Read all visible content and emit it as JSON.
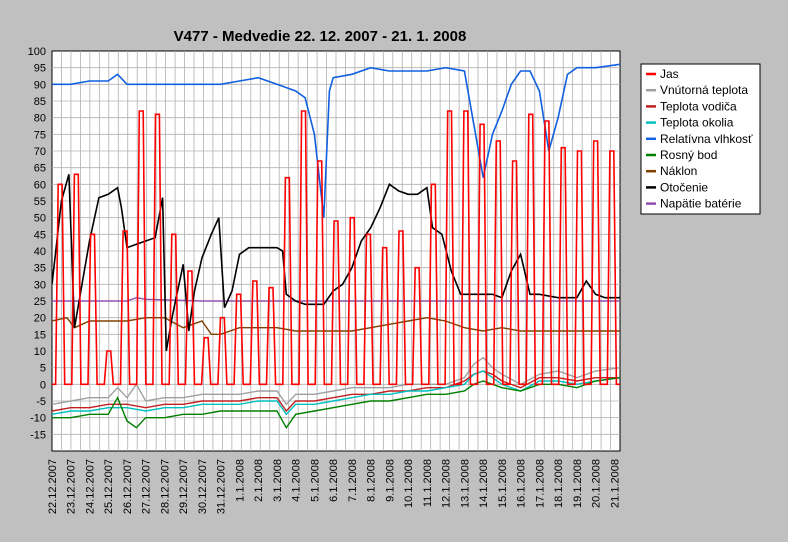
{
  "chart_data": {
    "type": "line",
    "title": "V477 - Medvedie   22. 12. 2007 - 21. 1. 2008",
    "xlabel": "",
    "ylabel": "",
    "ylim": [
      -20,
      100
    ],
    "yticks": [
      -15,
      -10,
      -5,
      0,
      5,
      10,
      15,
      20,
      25,
      30,
      35,
      40,
      45,
      50,
      55,
      60,
      65,
      70,
      75,
      80,
      85,
      90,
      95,
      100
    ],
    "xlim": [
      0,
      30.3
    ],
    "grid": true,
    "legend_position": "right",
    "categories": [
      "22.12.2007",
      "23.12.2007",
      "24.12.2007",
      "25.12.2007",
      "26.12.2007",
      "27.12.2007",
      "28.12.2007",
      "29.12.2007",
      "30.12.2007",
      "31.12.2007",
      "1.1.2008",
      "2.1.2008",
      "3.1.2008",
      "4.1.2008",
      "5.1.2008",
      "6.1.2008",
      "7.1.2008",
      "8.1.2008",
      "9.1.2008",
      "10.1.2008",
      "11.1.2008",
      "12.1.2008",
      "13.1.2008",
      "14.1.2008",
      "15.1.2008",
      "16.1.2008",
      "17.1.2008",
      "18.1.2008",
      "19.1.2008",
      "20.1.2008",
      "21.1.2008"
    ],
    "series": [
      {
        "name": "Jas",
        "color": "#ff0000",
        "peaks": [
          60,
          63,
          45,
          10,
          46,
          82,
          81,
          45,
          34,
          14,
          20,
          27,
          31,
          29,
          62,
          82,
          67,
          49,
          50,
          45,
          41,
          46,
          35,
          60,
          82,
          82,
          78,
          73,
          67,
          81,
          79,
          71,
          70,
          73,
          70
        ],
        "points": [
          [
            0,
            0
          ],
          [
            30.3,
            0
          ]
        ]
      },
      {
        "name": "Vnútorná teplota",
        "color": "#a0a0a0",
        "points": [
          [
            0,
            -6
          ],
          [
            1,
            -5
          ],
          [
            2,
            -4
          ],
          [
            3,
            -4
          ],
          [
            3.5,
            -1
          ],
          [
            4,
            -4
          ],
          [
            4.5,
            0
          ],
          [
            5,
            -5
          ],
          [
            6,
            -4
          ],
          [
            7,
            -4
          ],
          [
            8,
            -3
          ],
          [
            9,
            -3
          ],
          [
            10,
            -3
          ],
          [
            11,
            -2
          ],
          [
            12,
            -2
          ],
          [
            12.5,
            -6
          ],
          [
            13,
            -3
          ],
          [
            14,
            -3
          ],
          [
            15,
            -2
          ],
          [
            16,
            -1
          ],
          [
            17,
            -1
          ],
          [
            18,
            -1
          ],
          [
            19,
            0
          ],
          [
            20,
            0
          ],
          [
            21,
            0
          ],
          [
            22,
            2
          ],
          [
            22.5,
            6
          ],
          [
            23,
            8
          ],
          [
            23.5,
            5
          ],
          [
            24,
            3
          ],
          [
            25,
            0
          ],
          [
            26,
            3
          ],
          [
            27,
            4
          ],
          [
            28,
            2
          ],
          [
            29,
            4
          ],
          [
            30.3,
            5
          ]
        ]
      },
      {
        "name": "Teplota vodiča",
        "color": "#c02020",
        "points": [
          [
            0,
            -8
          ],
          [
            1,
            -7
          ],
          [
            2,
            -7
          ],
          [
            3,
            -6
          ],
          [
            4,
            -6
          ],
          [
            5,
            -7
          ],
          [
            6,
            -6
          ],
          [
            7,
            -6
          ],
          [
            8,
            -5
          ],
          [
            9,
            -5
          ],
          [
            10,
            -5
          ],
          [
            11,
            -4
          ],
          [
            12,
            -4
          ],
          [
            12.5,
            -8
          ],
          [
            13,
            -5
          ],
          [
            14,
            -5
          ],
          [
            15,
            -4
          ],
          [
            16,
            -3
          ],
          [
            17,
            -3
          ],
          [
            18,
            -2
          ],
          [
            19,
            -2
          ],
          [
            20,
            -1
          ],
          [
            21,
            -1
          ],
          [
            22,
            1
          ],
          [
            22.5,
            3
          ],
          [
            23,
            4
          ],
          [
            23.5,
            3
          ],
          [
            24,
            1
          ],
          [
            25,
            -1
          ],
          [
            26,
            2
          ],
          [
            27,
            2
          ],
          [
            28,
            1
          ],
          [
            29,
            2
          ],
          [
            30.3,
            2
          ]
        ]
      },
      {
        "name": "Teplota okolia",
        "color": "#00c0c0",
        "points": [
          [
            0,
            -9
          ],
          [
            1,
            -8
          ],
          [
            2,
            -8
          ],
          [
            3,
            -7
          ],
          [
            4,
            -7
          ],
          [
            5,
            -8
          ],
          [
            6,
            -7
          ],
          [
            7,
            -7
          ],
          [
            8,
            -6
          ],
          [
            9,
            -6
          ],
          [
            10,
            -6
          ],
          [
            11,
            -5
          ],
          [
            12,
            -5
          ],
          [
            12.5,
            -9
          ],
          [
            13,
            -6
          ],
          [
            14,
            -6
          ],
          [
            15,
            -5
          ],
          [
            16,
            -4
          ],
          [
            17,
            -3
          ],
          [
            18,
            -3
          ],
          [
            19,
            -2
          ],
          [
            20,
            -2
          ],
          [
            21,
            -1
          ],
          [
            22,
            0
          ],
          [
            22.5,
            3
          ],
          [
            23,
            4
          ],
          [
            23.5,
            2
          ],
          [
            24,
            0
          ],
          [
            25,
            -2
          ],
          [
            26,
            1
          ],
          [
            27,
            1
          ],
          [
            28,
            0
          ],
          [
            29,
            1
          ],
          [
            30.3,
            2
          ]
        ]
      },
      {
        "name": "Relatívna vlhkosť",
        "color": "#1060e0",
        "points": [
          [
            0,
            90
          ],
          [
            1,
            90
          ],
          [
            2,
            91
          ],
          [
            3,
            91
          ],
          [
            3.5,
            93
          ],
          [
            4,
            90
          ],
          [
            5,
            90
          ],
          [
            6,
            90
          ],
          [
            7,
            90
          ],
          [
            8,
            90
          ],
          [
            9,
            90
          ],
          [
            10,
            91
          ],
          [
            11,
            92
          ],
          [
            12,
            90
          ],
          [
            13,
            88
          ],
          [
            13.5,
            86
          ],
          [
            14,
            75
          ],
          [
            14.5,
            50
          ],
          [
            14.8,
            88
          ],
          [
            15,
            92
          ],
          [
            16,
            93
          ],
          [
            17,
            95
          ],
          [
            18,
            94
          ],
          [
            19,
            94
          ],
          [
            20,
            94
          ],
          [
            21,
            95
          ],
          [
            22,
            94
          ],
          [
            22.5,
            78
          ],
          [
            23,
            62
          ],
          [
            23.5,
            75
          ],
          [
            24,
            82
          ],
          [
            24.5,
            90
          ],
          [
            25,
            94
          ],
          [
            25.5,
            94
          ],
          [
            26,
            88
          ],
          [
            26.5,
            70
          ],
          [
            27,
            80
          ],
          [
            27.5,
            93
          ],
          [
            28,
            95
          ],
          [
            29,
            95
          ],
          [
            30.3,
            96
          ]
        ]
      },
      {
        "name": "Rosný bod",
        "color": "#008000",
        "points": [
          [
            0,
            -10
          ],
          [
            1,
            -10
          ],
          [
            2,
            -9
          ],
          [
            3,
            -9
          ],
          [
            3.5,
            -4
          ],
          [
            4,
            -11
          ],
          [
            4.5,
            -13
          ],
          [
            5,
            -10
          ],
          [
            6,
            -10
          ],
          [
            7,
            -9
          ],
          [
            8,
            -9
          ],
          [
            9,
            -8
          ],
          [
            10,
            -8
          ],
          [
            11,
            -8
          ],
          [
            12,
            -8
          ],
          [
            12.5,
            -13
          ],
          [
            13,
            -9
          ],
          [
            14,
            -8
          ],
          [
            15,
            -7
          ],
          [
            16,
            -6
          ],
          [
            17,
            -5
          ],
          [
            18,
            -5
          ],
          [
            19,
            -4
          ],
          [
            20,
            -3
          ],
          [
            21,
            -3
          ],
          [
            22,
            -2
          ],
          [
            22.5,
            0
          ],
          [
            23,
            1
          ],
          [
            23.5,
            0
          ],
          [
            24,
            -1
          ],
          [
            25,
            -2
          ],
          [
            26,
            0
          ],
          [
            27,
            0
          ],
          [
            28,
            -1
          ],
          [
            29,
            1
          ],
          [
            30.3,
            2
          ]
        ]
      },
      {
        "name": "Náklon",
        "color": "#804000",
        "points": [
          [
            0,
            19
          ],
          [
            0.8,
            20
          ],
          [
            1.2,
            17
          ],
          [
            2,
            19
          ],
          [
            3,
            19
          ],
          [
            4,
            19
          ],
          [
            5,
            20
          ],
          [
            6,
            20
          ],
          [
            7,
            17
          ],
          [
            8,
            19
          ],
          [
            8.5,
            15
          ],
          [
            9,
            15
          ],
          [
            10,
            17
          ],
          [
            11,
            17
          ],
          [
            12,
            17
          ],
          [
            13,
            16
          ],
          [
            14,
            16
          ],
          [
            15,
            16
          ],
          [
            16,
            16
          ],
          [
            17,
            17
          ],
          [
            18,
            18
          ],
          [
            19,
            19
          ],
          [
            20,
            20
          ],
          [
            21,
            19
          ],
          [
            22,
            17
          ],
          [
            23,
            16
          ],
          [
            24,
            17
          ],
          [
            25,
            16
          ],
          [
            26,
            16
          ],
          [
            27,
            16
          ],
          [
            28,
            16
          ],
          [
            29,
            16
          ],
          [
            30.3,
            16
          ]
        ]
      },
      {
        "name": "Otočenie",
        "color": "#000000",
        "points": [
          [
            0,
            30
          ],
          [
            0.5,
            55
          ],
          [
            0.9,
            63
          ],
          [
            1.2,
            17
          ],
          [
            1.6,
            30
          ],
          [
            2,
            43
          ],
          [
            2.5,
            56
          ],
          [
            3,
            57
          ],
          [
            3.5,
            59
          ],
          [
            3.7,
            53
          ],
          [
            4,
            41
          ],
          [
            4.5,
            42
          ],
          [
            5,
            43
          ],
          [
            5.5,
            44
          ],
          [
            5.9,
            56
          ],
          [
            6.1,
            10
          ],
          [
            6.4,
            20
          ],
          [
            7,
            36
          ],
          [
            7.3,
            16
          ],
          [
            7.6,
            28
          ],
          [
            8,
            38
          ],
          [
            8.5,
            45
          ],
          [
            8.9,
            50
          ],
          [
            9.2,
            23
          ],
          [
            9.6,
            28
          ],
          [
            10,
            39
          ],
          [
            10.5,
            41
          ],
          [
            11,
            41
          ],
          [
            11.5,
            41
          ],
          [
            12,
            41
          ],
          [
            12.3,
            40
          ],
          [
            12.5,
            27
          ],
          [
            13,
            25
          ],
          [
            13.5,
            24
          ],
          [
            14,
            24
          ],
          [
            14.5,
            24
          ],
          [
            15,
            28
          ],
          [
            15.5,
            30
          ],
          [
            16,
            35
          ],
          [
            16.5,
            43
          ],
          [
            17,
            47
          ],
          [
            17.5,
            53
          ],
          [
            18,
            60
          ],
          [
            18.5,
            58
          ],
          [
            19,
            57
          ],
          [
            19.5,
            57
          ],
          [
            20,
            59
          ],
          [
            20.3,
            47
          ],
          [
            20.8,
            45
          ],
          [
            21.3,
            34
          ],
          [
            21.8,
            27
          ],
          [
            22,
            27
          ],
          [
            23,
            27
          ],
          [
            23.5,
            27
          ],
          [
            24,
            26
          ],
          [
            24.5,
            34
          ],
          [
            25,
            39
          ],
          [
            25.5,
            27
          ],
          [
            26,
            27
          ],
          [
            27,
            26
          ],
          [
            28,
            26
          ],
          [
            28.5,
            31
          ],
          [
            29,
            27
          ],
          [
            29.5,
            26
          ],
          [
            30.3,
            26
          ]
        ]
      },
      {
        "name": "Napätie batérie",
        "color": "#9050b0",
        "points": [
          [
            0,
            25
          ],
          [
            2,
            25
          ],
          [
            4,
            25
          ],
          [
            4.5,
            26
          ],
          [
            5,
            25.5
          ],
          [
            8,
            25
          ],
          [
            10,
            25
          ],
          [
            12,
            25
          ],
          [
            14,
            25
          ],
          [
            16,
            25
          ],
          [
            18,
            25
          ],
          [
            20,
            25
          ],
          [
            22,
            25
          ],
          [
            24,
            25
          ],
          [
            26,
            25
          ],
          [
            28,
            25
          ],
          [
            30.3,
            25
          ]
        ]
      }
    ]
  }
}
